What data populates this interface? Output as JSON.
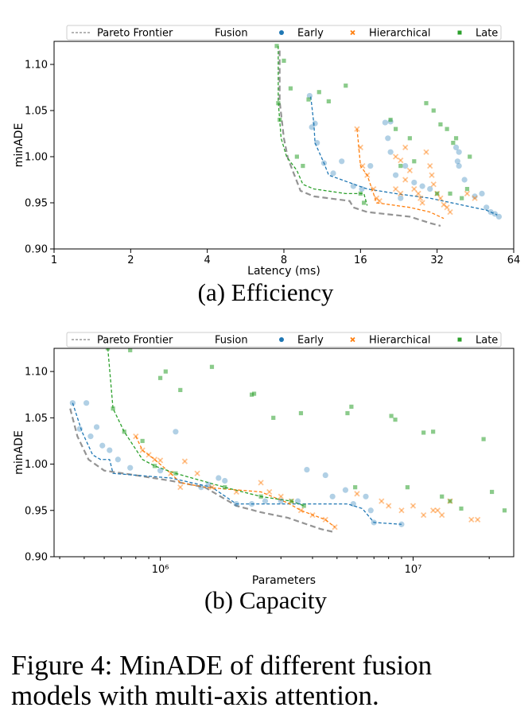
{
  "colors": {
    "early": "#1f77b4",
    "hierarchical": "#ff7f0e",
    "late": "#2ca02c",
    "pareto": "#888888"
  },
  "legend": {
    "pareto": "Pareto Frontier",
    "fusion": "Fusion",
    "early": "Early",
    "hierarchical": "Hierarchical",
    "late": "Late"
  },
  "caption": {
    "line1": "Figure 4:   MinADE of different fusion",
    "line2": "models with multi-axis attention."
  },
  "chart_data": [
    {
      "type": "scatter",
      "subcaption": "(a) Efficiency",
      "xlabel": "Latency (ms)",
      "ylabel": "minADE",
      "xscale": "log2",
      "xlim": [
        1,
        64
      ],
      "ylim": [
        0.9,
        1.125
      ],
      "xticks": [
        1,
        2,
        4,
        8,
        16,
        32,
        64
      ],
      "xtick_labels": [
        "1",
        "2",
        "4",
        "8",
        "16",
        "32",
        "64"
      ],
      "yticks": [
        0.9,
        0.95,
        1.0,
        1.05,
        1.1
      ],
      "ytick_labels": [
        "0.90",
        "0.95",
        "1.00",
        "1.05",
        "1.10"
      ],
      "legend_position": "top",
      "pareto": [
        [
          7.7,
          1.115
        ],
        [
          7.7,
          1.06
        ],
        [
          8.0,
          1.02
        ],
        [
          8.3,
          0.998
        ],
        [
          9.3,
          0.963
        ],
        [
          10.5,
          0.957
        ],
        [
          14.5,
          0.952
        ],
        [
          15.0,
          0.945
        ],
        [
          17.0,
          0.94
        ],
        [
          25.0,
          0.935
        ],
        [
          30.0,
          0.928
        ],
        [
          33.0,
          0.925
        ]
      ],
      "frontiers": {
        "early": [
          [
            10.2,
            1.065
          ],
          [
            10.5,
            1.035
          ],
          [
            10.6,
            1.015
          ],
          [
            11.5,
            0.993
          ],
          [
            12.0,
            0.98
          ],
          [
            17.0,
            0.965
          ],
          [
            22.0,
            0.96
          ],
          [
            30.0,
            0.955
          ],
          [
            50.0,
            0.942
          ],
          [
            55.0,
            0.937
          ]
        ],
        "hierarchical": [
          [
            15.5,
            1.03
          ],
          [
            15.7,
            1.015
          ],
          [
            16.0,
            0.99
          ],
          [
            17.0,
            0.98
          ],
          [
            18.0,
            0.96
          ],
          [
            18.5,
            0.95
          ],
          [
            25.0,
            0.945
          ],
          [
            30.0,
            0.94
          ],
          [
            34.0,
            0.933
          ]
        ],
        "late": [
          [
            7.6,
            1.12
          ],
          [
            7.6,
            1.06
          ],
          [
            7.8,
            1.02
          ],
          [
            8.2,
            1.0
          ],
          [
            9.0,
            0.985
          ],
          [
            9.5,
            0.97
          ],
          [
            10.5,
            0.965
          ],
          [
            14.0,
            0.96
          ],
          [
            16.5,
            0.96
          ],
          [
            17.0,
            0.947
          ]
        ]
      },
      "points": {
        "early": [
          [
            10.1,
            1.066
          ],
          [
            10.3,
            1.032
          ],
          [
            10.6,
            1.036
          ],
          [
            10.8,
            1.015
          ],
          [
            11.5,
            0.993
          ],
          [
            12.5,
            0.982
          ],
          [
            13.5,
            0.995
          ],
          [
            15.0,
            0.968
          ],
          [
            16.2,
            0.965
          ],
          [
            17.5,
            0.99
          ],
          [
            20.0,
            1.037
          ],
          [
            21.0,
            1.038
          ],
          [
            20.5,
            1.02
          ],
          [
            21.0,
            1.005
          ],
          [
            22.0,
            0.98
          ],
          [
            24.0,
            0.99
          ],
          [
            26.0,
            0.972
          ],
          [
            28.0,
            0.968
          ],
          [
            30.0,
            0.965
          ],
          [
            38.0,
            1.01
          ],
          [
            39.0,
            1.005
          ],
          [
            38.5,
            0.995
          ],
          [
            39.0,
            0.99
          ],
          [
            41.0,
            0.975
          ],
          [
            45.0,
            0.957
          ],
          [
            48.0,
            0.96
          ],
          [
            50.0,
            0.945
          ],
          [
            52.0,
            0.94
          ],
          [
            54.0,
            0.938
          ],
          [
            56.0,
            0.935
          ],
          [
            23.0,
            0.955
          ]
        ],
        "hierarchical": [
          [
            15.5,
            1.03
          ],
          [
            16.0,
            1.01
          ],
          [
            16.3,
            0.99
          ],
          [
            17.0,
            0.98
          ],
          [
            18.0,
            0.965
          ],
          [
            18.5,
            0.955
          ],
          [
            19.0,
            0.952
          ],
          [
            22.0,
            1.0
          ],
          [
            23.0,
            0.996
          ],
          [
            24.0,
            1.01
          ],
          [
            25.0,
            0.985
          ],
          [
            22.0,
            0.965
          ],
          [
            23.0,
            0.96
          ],
          [
            24.0,
            0.975
          ],
          [
            26.0,
            0.965
          ],
          [
            27.0,
            0.96
          ],
          [
            27.5,
            0.955
          ],
          [
            28.0,
            0.95
          ],
          [
            29.0,
            1.005
          ],
          [
            30.0,
            0.99
          ],
          [
            30.5,
            0.98
          ],
          [
            31.0,
            0.97
          ],
          [
            32.0,
            0.96
          ],
          [
            33.0,
            0.955
          ],
          [
            34.0,
            0.948
          ],
          [
            35.0,
            0.945
          ],
          [
            36.0,
            0.94
          ],
          [
            42.0,
            0.96
          ],
          [
            45.0,
            0.955
          ]
        ],
        "late": [
          [
            7.5,
            1.12
          ],
          [
            8.0,
            1.104
          ],
          [
            8.5,
            1.074
          ],
          [
            9.0,
            1.0
          ],
          [
            9.5,
            0.99
          ],
          [
            7.6,
            1.058
          ],
          [
            7.7,
            1.04
          ],
          [
            10.0,
            1.062
          ],
          [
            11.0,
            1.07
          ],
          [
            12.0,
            1.06
          ],
          [
            14.0,
            1.077
          ],
          [
            16.0,
            0.96
          ],
          [
            16.5,
            0.95
          ],
          [
            21.0,
            1.04
          ],
          [
            22.0,
            1.03
          ],
          [
            23.0,
            0.99
          ],
          [
            25.0,
            1.02
          ],
          [
            26.0,
            0.995
          ],
          [
            29.0,
            1.058
          ],
          [
            31.0,
            1.05
          ],
          [
            33.0,
            1.035
          ],
          [
            32.0,
            0.96
          ],
          [
            35.0,
            1.03
          ],
          [
            37.0,
            1.015
          ],
          [
            36.0,
            0.96
          ],
          [
            40.0,
            0.955
          ],
          [
            42.0,
            0.965
          ],
          [
            38.0,
            1.02
          ],
          [
            43.0,
            1.0
          ]
        ]
      }
    },
    {
      "type": "scatter",
      "subcaption": "(b) Capacity",
      "xlabel": "Parameters",
      "ylabel": "minADE",
      "xscale": "log10",
      "xlim": [
        380000,
        25000000
      ],
      "ylim": [
        0.9,
        1.125
      ],
      "xticks": [
        1000000,
        10000000
      ],
      "xtick_labels": [
        "10⁶",
        "10⁷"
      ],
      "yticks": [
        0.9,
        0.95,
        1.0,
        1.05,
        1.1
      ],
      "ytick_labels": [
        "0.90",
        "0.95",
        "1.00",
        "1.05",
        "1.10"
      ],
      "legend_position": "top",
      "pareto": [
        [
          440000,
          1.06
        ],
        [
          470000,
          1.03
        ],
        [
          520000,
          1.005
        ],
        [
          600000,
          0.993
        ],
        [
          800000,
          0.988
        ],
        [
          1100000,
          0.982
        ],
        [
          1500000,
          0.975
        ],
        [
          2000000,
          0.955
        ],
        [
          2500000,
          0.948
        ],
        [
          3200000,
          0.942
        ],
        [
          3800000,
          0.935
        ],
        [
          4300000,
          0.93
        ],
        [
          4800000,
          0.927
        ]
      ],
      "frontiers": {
        "early": [
          [
            450000,
            1.066
          ],
          [
            490000,
            1.035
          ],
          [
            540000,
            1.01
          ],
          [
            580000,
            1.005
          ],
          [
            630000,
            1.005
          ],
          [
            650000,
            0.99
          ],
          [
            1100000,
            0.985
          ],
          [
            1600000,
            0.975
          ],
          [
            2000000,
            0.957
          ],
          [
            5500000,
            0.957
          ],
          [
            6300000,
            0.952
          ],
          [
            7000000,
            0.937
          ],
          [
            9000000,
            0.935
          ]
        ],
        "hierarchical": [
          [
            800000,
            1.03
          ],
          [
            850000,
            1.015
          ],
          [
            950000,
            1.005
          ],
          [
            1100000,
            0.99
          ],
          [
            1200000,
            0.98
          ],
          [
            1500000,
            0.975
          ],
          [
            2500000,
            0.97
          ],
          [
            3200000,
            0.958
          ],
          [
            3600000,
            0.95
          ],
          [
            4500000,
            0.94
          ],
          [
            4900000,
            0.932
          ]
        ],
        "late": [
          [
            620000,
            1.125
          ],
          [
            650000,
            1.06
          ],
          [
            720000,
            1.035
          ],
          [
            850000,
            1.005
          ],
          [
            950000,
            0.998
          ],
          [
            1150000,
            0.99
          ],
          [
            1800000,
            0.975
          ],
          [
            2500000,
            0.965
          ],
          [
            3300000,
            0.96
          ],
          [
            3700000,
            0.955
          ]
        ]
      },
      "points": {
        "early": [
          [
            450000,
            1.066
          ],
          [
            480000,
            1.038
          ],
          [
            510000,
            1.066
          ],
          [
            530000,
            1.03
          ],
          [
            560000,
            1.04
          ],
          [
            590000,
            1.02
          ],
          [
            630000,
            1.015
          ],
          [
            680000,
            1.005
          ],
          [
            760000,
            0.996
          ],
          [
            1000000,
            0.993
          ],
          [
            1150000,
            1.035
          ],
          [
            1450000,
            0.975
          ],
          [
            1550000,
            0.978
          ],
          [
            1700000,
            0.985
          ],
          [
            1800000,
            0.982
          ],
          [
            2000000,
            0.957
          ],
          [
            2300000,
            0.957
          ],
          [
            2600000,
            0.96
          ],
          [
            3000000,
            0.96
          ],
          [
            3500000,
            0.96
          ],
          [
            3800000,
            0.994
          ],
          [
            4500000,
            0.988
          ],
          [
            4800000,
            0.965
          ],
          [
            5400000,
            0.972
          ],
          [
            5800000,
            0.957
          ],
          [
            6500000,
            0.965
          ],
          [
            6800000,
            0.95
          ],
          [
            9000000,
            0.935
          ],
          [
            7000000,
            0.937
          ]
        ],
        "hierarchical": [
          [
            800000,
            1.03
          ],
          [
            850000,
            1.015
          ],
          [
            900000,
            1.01
          ],
          [
            950000,
            1.005
          ],
          [
            1000000,
            1.004
          ],
          [
            1100000,
            0.99
          ],
          [
            1250000,
            1.003
          ],
          [
            1200000,
            0.975
          ],
          [
            1400000,
            0.99
          ],
          [
            1600000,
            0.975
          ],
          [
            2000000,
            0.97
          ],
          [
            2500000,
            0.98
          ],
          [
            2700000,
            0.97
          ],
          [
            3000000,
            0.965
          ],
          [
            3300000,
            0.96
          ],
          [
            3600000,
            0.95
          ],
          [
            4000000,
            0.945
          ],
          [
            4500000,
            0.94
          ],
          [
            4900000,
            0.932
          ],
          [
            6000000,
            0.968
          ],
          [
            7500000,
            0.96
          ],
          [
            8000000,
            0.955
          ],
          [
            9000000,
            0.95
          ],
          [
            10000000,
            0.955
          ],
          [
            11000000,
            0.945
          ],
          [
            12000000,
            0.95
          ],
          [
            13000000,
            0.945
          ],
          [
            14000000,
            0.96
          ],
          [
            17000000,
            0.94
          ],
          [
            18000000,
            0.94
          ],
          [
            12500000,
            0.95
          ]
        ],
        "late": [
          [
            620000,
            1.125
          ],
          [
            650000,
            1.06
          ],
          [
            720000,
            1.035
          ],
          [
            760000,
            1.123
          ],
          [
            850000,
            1.025
          ],
          [
            1000000,
            1.093
          ],
          [
            1050000,
            1.1
          ],
          [
            1200000,
            1.08
          ],
          [
            1600000,
            1.105
          ],
          [
            2300000,
            1.075
          ],
          [
            2350000,
            1.076
          ],
          [
            2800000,
            1.05
          ],
          [
            3600000,
            1.055
          ],
          [
            5500000,
            1.055
          ],
          [
            5700000,
            1.062
          ],
          [
            8200000,
            1.052
          ],
          [
            8500000,
            1.048
          ],
          [
            11000000,
            1.034
          ],
          [
            12000000,
            1.035
          ],
          [
            19000000,
            1.027
          ],
          [
            950000,
            0.998
          ],
          [
            1150000,
            0.99
          ],
          [
            1800000,
            0.975
          ],
          [
            2500000,
            0.965
          ],
          [
            3300000,
            0.96
          ],
          [
            3700000,
            0.955
          ],
          [
            5900000,
            0.975
          ],
          [
            9500000,
            0.975
          ],
          [
            13000000,
            0.965
          ],
          [
            14000000,
            0.96
          ],
          [
            15500000,
            0.952
          ],
          [
            20500000,
            0.97
          ],
          [
            23000000,
            0.95
          ]
        ]
      }
    }
  ]
}
